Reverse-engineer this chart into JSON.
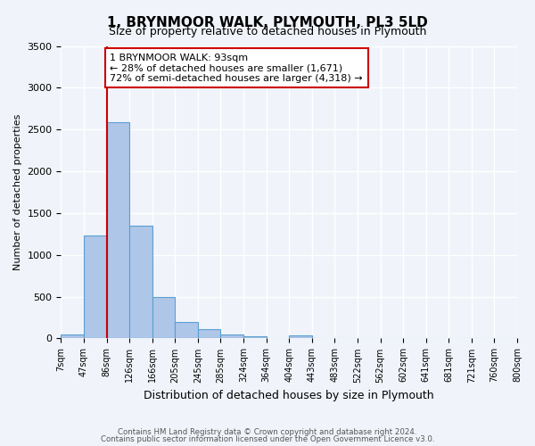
{
  "title": "1, BRYNMOOR WALK, PLYMOUTH, PL3 5LD",
  "subtitle": "Size of property relative to detached houses in Plymouth",
  "xlabel": "Distribution of detached houses by size in Plymouth",
  "ylabel": "Number of detached properties",
  "bin_labels": [
    "7sqm",
    "47sqm",
    "86sqm",
    "126sqm",
    "166sqm",
    "205sqm",
    "245sqm",
    "285sqm",
    "324sqm",
    "364sqm",
    "404sqm",
    "443sqm",
    "483sqm",
    "522sqm",
    "562sqm",
    "602sqm",
    "641sqm",
    "681sqm",
    "721sqm",
    "760sqm",
    "800sqm"
  ],
  "bar_values": [
    50,
    1230,
    2590,
    1350,
    500,
    200,
    115,
    50,
    30,
    0,
    35,
    0,
    0,
    0,
    0,
    0,
    0,
    0,
    0,
    0
  ],
  "bar_color": "#aec6e8",
  "bar_edge_color": "#5a9fd4",
  "vline_x": 2,
  "vline_color": "#cc0000",
  "ylim": [
    0,
    3500
  ],
  "yticks": [
    0,
    500,
    1000,
    1500,
    2000,
    2500,
    3000,
    3500
  ],
  "annotation_text": "1 BRYNMOOR WALK: 93sqm\n← 28% of detached houses are smaller (1,671)\n72% of semi-detached houses are larger (4,318) →",
  "annotation_box_color": "#ffffff",
  "annotation_box_edge_color": "#cc0000",
  "footer_line1": "Contains HM Land Registry data © Crown copyright and database right 2024.",
  "footer_line2": "Contains public sector information licensed under the Open Government Licence v3.0.",
  "background_color": "#f0f4fa",
  "grid_color": "#ffffff"
}
